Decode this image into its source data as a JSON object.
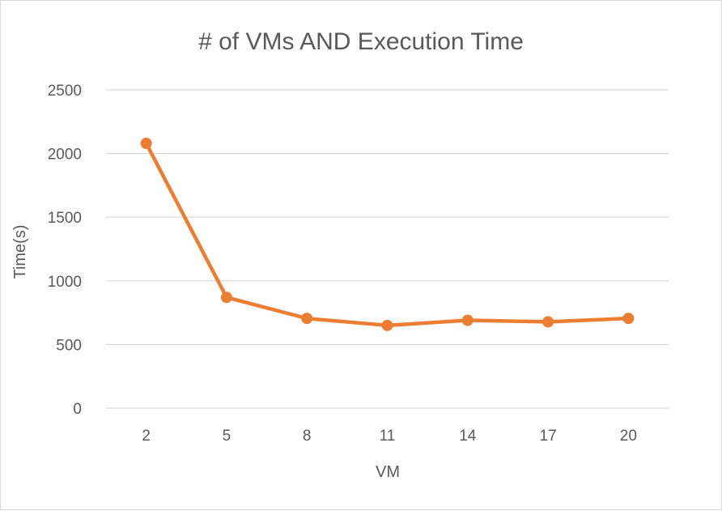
{
  "chart_data": {
    "type": "line",
    "title": "# of VMs AND Execution Time",
    "xlabel": "VM",
    "ylabel": "Time(s)",
    "categories": [
      "2",
      "5",
      "8",
      "11",
      "14",
      "17",
      "20"
    ],
    "series": [
      {
        "values": [
          2080,
          870,
          705,
          650,
          690,
          678,
          705
        ]
      }
    ],
    "ylim": [
      0,
      2500
    ],
    "yticks": [
      "0",
      "500",
      "1000",
      "1500",
      "2000",
      "2500"
    ],
    "grid": true,
    "legend": "none",
    "colors": {
      "series": "#ed7d31",
      "grid": "#d9d9d9",
      "text": "#595959"
    }
  }
}
